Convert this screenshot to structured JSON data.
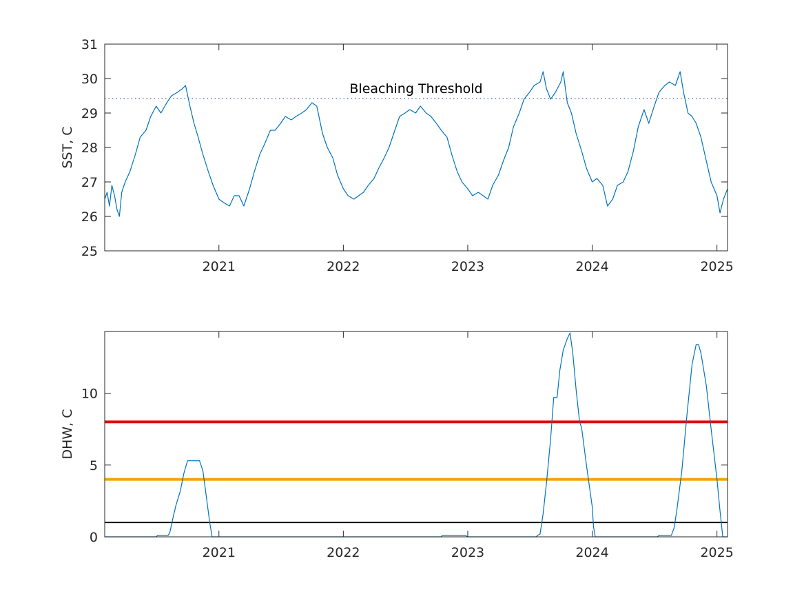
{
  "chart_data": [
    {
      "type": "line",
      "title": "",
      "xlabel": "",
      "ylabel": "SST, C",
      "xlim": [
        "2020-02-01",
        "2025-02-01"
      ],
      "ylim": [
        25,
        31
      ],
      "x_ticks": [
        "2021",
        "2022",
        "2023",
        "2024",
        "2025"
      ],
      "y_ticks": [
        "25",
        "26",
        "27",
        "28",
        "29",
        "30",
        "31"
      ],
      "grid": false,
      "series": [
        {
          "color": "#0072BD",
          "points": [
            [
              "2020-02-01",
              26.5
            ],
            [
              "2020-02-08",
              26.7
            ],
            [
              "2020-02-15",
              26.3
            ],
            [
              "2020-02-22",
              26.9
            ],
            [
              "2020-03-01",
              26.6
            ],
            [
              "2020-03-08",
              26.2
            ],
            [
              "2020-03-15",
              26.0
            ],
            [
              "2020-03-22",
              26.7
            ],
            [
              "2020-04-01",
              27.0
            ],
            [
              "2020-04-15",
              27.3
            ],
            [
              "2020-05-01",
              27.8
            ],
            [
              "2020-05-15",
              28.3
            ],
            [
              "2020-06-01",
              28.5
            ],
            [
              "2020-06-15",
              28.9
            ],
            [
              "2020-07-01",
              29.2
            ],
            [
              "2020-07-15",
              29.0
            ],
            [
              "2020-08-01",
              29.3
            ],
            [
              "2020-08-15",
              29.5
            ],
            [
              "2020-09-01",
              29.6
            ],
            [
              "2020-09-15",
              29.7
            ],
            [
              "2020-09-25",
              29.8
            ],
            [
              "2020-10-08",
              29.2
            ],
            [
              "2020-10-20",
              28.7
            ],
            [
              "2020-11-01",
              28.3
            ],
            [
              "2020-11-15",
              27.8
            ],
            [
              "2020-12-01",
              27.3
            ],
            [
              "2020-12-15",
              26.9
            ],
            [
              "2021-01-01",
              26.5
            ],
            [
              "2021-01-15",
              26.4
            ],
            [
              "2021-02-01",
              26.3
            ],
            [
              "2021-02-15",
              26.6
            ],
            [
              "2021-03-01",
              26.6
            ],
            [
              "2021-03-15",
              26.3
            ],
            [
              "2021-04-01",
              26.8
            ],
            [
              "2021-04-15",
              27.3
            ],
            [
              "2021-05-01",
              27.8
            ],
            [
              "2021-05-15",
              28.1
            ],
            [
              "2021-06-01",
              28.5
            ],
            [
              "2021-06-15",
              28.5
            ],
            [
              "2021-07-01",
              28.7
            ],
            [
              "2021-07-15",
              28.9
            ],
            [
              "2021-08-01",
              28.8
            ],
            [
              "2021-08-15",
              28.9
            ],
            [
              "2021-09-01",
              29.0
            ],
            [
              "2021-09-15",
              29.1
            ],
            [
              "2021-10-01",
              29.3
            ],
            [
              "2021-10-15",
              29.2
            ],
            [
              "2021-11-01",
              28.4
            ],
            [
              "2021-11-15",
              28.0
            ],
            [
              "2021-12-01",
              27.7
            ],
            [
              "2021-12-15",
              27.2
            ],
            [
              "2022-01-01",
              26.8
            ],
            [
              "2022-01-15",
              26.6
            ],
            [
              "2022-02-01",
              26.5
            ],
            [
              "2022-02-15",
              26.6
            ],
            [
              "2022-03-01",
              26.7
            ],
            [
              "2022-03-15",
              26.9
            ],
            [
              "2022-04-01",
              27.1
            ],
            [
              "2022-04-15",
              27.4
            ],
            [
              "2022-05-01",
              27.7
            ],
            [
              "2022-05-15",
              28.0
            ],
            [
              "2022-06-01",
              28.5
            ],
            [
              "2022-06-15",
              28.9
            ],
            [
              "2022-07-01",
              29.0
            ],
            [
              "2022-07-15",
              29.1
            ],
            [
              "2022-08-01",
              29.0
            ],
            [
              "2022-08-15",
              29.2
            ],
            [
              "2022-09-01",
              29.0
            ],
            [
              "2022-09-15",
              28.9
            ],
            [
              "2022-10-01",
              28.7
            ],
            [
              "2022-10-15",
              28.5
            ],
            [
              "2022-11-01",
              28.3
            ],
            [
              "2022-11-15",
              27.8
            ],
            [
              "2022-12-01",
              27.3
            ],
            [
              "2022-12-15",
              27.0
            ],
            [
              "2023-01-01",
              26.8
            ],
            [
              "2023-01-15",
              26.6
            ],
            [
              "2023-02-01",
              26.7
            ],
            [
              "2023-02-15",
              26.6
            ],
            [
              "2023-03-01",
              26.5
            ],
            [
              "2023-03-15",
              26.9
            ],
            [
              "2023-04-01",
              27.2
            ],
            [
              "2023-04-15",
              27.6
            ],
            [
              "2023-05-01",
              28.0
            ],
            [
              "2023-05-15",
              28.6
            ],
            [
              "2023-06-01",
              29.0
            ],
            [
              "2023-06-15",
              29.4
            ],
            [
              "2023-07-01",
              29.6
            ],
            [
              "2023-07-15",
              29.8
            ],
            [
              "2023-08-01",
              29.9
            ],
            [
              "2023-08-10",
              30.2
            ],
            [
              "2023-08-20",
              29.7
            ],
            [
              "2023-09-01",
              29.4
            ],
            [
              "2023-09-15",
              29.6
            ],
            [
              "2023-10-01",
              29.9
            ],
            [
              "2023-10-08",
              30.2
            ],
            [
              "2023-10-20",
              29.3
            ],
            [
              "2023-11-01",
              29.0
            ],
            [
              "2023-11-15",
              28.4
            ],
            [
              "2023-12-01",
              27.9
            ],
            [
              "2023-12-15",
              27.4
            ],
            [
              "2024-01-01",
              27.0
            ],
            [
              "2024-01-15",
              27.1
            ],
            [
              "2024-02-01",
              26.9
            ],
            [
              "2024-02-15",
              26.3
            ],
            [
              "2024-03-01",
              26.5
            ],
            [
              "2024-03-15",
              26.9
            ],
            [
              "2024-04-01",
              27.0
            ],
            [
              "2024-04-15",
              27.3
            ],
            [
              "2024-05-01",
              27.9
            ],
            [
              "2024-05-15",
              28.6
            ],
            [
              "2024-06-01",
              29.1
            ],
            [
              "2024-06-15",
              28.7
            ],
            [
              "2024-07-01",
              29.2
            ],
            [
              "2024-07-15",
              29.6
            ],
            [
              "2024-08-01",
              29.8
            ],
            [
              "2024-08-15",
              29.9
            ],
            [
              "2024-09-01",
              29.8
            ],
            [
              "2024-09-15",
              30.2
            ],
            [
              "2024-09-25",
              29.6
            ],
            [
              "2024-10-08",
              29.0
            ],
            [
              "2024-10-20",
              28.9
            ],
            [
              "2024-11-01",
              28.7
            ],
            [
              "2024-11-15",
              28.3
            ],
            [
              "2024-12-01",
              27.6
            ],
            [
              "2024-12-15",
              27.0
            ],
            [
              "2025-01-01",
              26.6
            ],
            [
              "2025-01-10",
              26.1
            ],
            [
              "2025-01-20",
              26.5
            ],
            [
              "2025-02-01",
              26.8
            ]
          ]
        }
      ],
      "reference_lines": [
        {
          "label": "Bleaching Threshold",
          "y": 29.42,
          "style": "dotted",
          "color": "#4a58b5"
        }
      ]
    },
    {
      "type": "line",
      "title": "",
      "xlabel": "",
      "ylabel": "DHW, C",
      "xlim": [
        "2020-02-01",
        "2025-02-01"
      ],
      "ylim": [
        0,
        14.3
      ],
      "x_ticks": [
        "2021",
        "2022",
        "2023",
        "2024",
        "2025"
      ],
      "y_ticks": [
        "0",
        "5",
        "10"
      ],
      "grid": false,
      "series": [
        {
          "color": "#0072BD",
          "points": [
            [
              "2020-02-01",
              0
            ],
            [
              "2020-07-01",
              0
            ],
            [
              "2020-07-05",
              0.1
            ],
            [
              "2020-08-05",
              0.1
            ],
            [
              "2020-08-10",
              0.3
            ],
            [
              "2020-08-18",
              1.2
            ],
            [
              "2020-08-28",
              2.2
            ],
            [
              "2020-09-10",
              3.2
            ],
            [
              "2020-09-20",
              4.4
            ],
            [
              "2020-10-01",
              5.3
            ],
            [
              "2020-11-05",
              5.3
            ],
            [
              "2020-11-15",
              4.6
            ],
            [
              "2020-11-25",
              2.8
            ],
            [
              "2020-12-05",
              1.0
            ],
            [
              "2020-12-12",
              0
            ],
            [
              "2022-10-15",
              0
            ],
            [
              "2022-10-18",
              0.1
            ],
            [
              "2022-12-25",
              0.1
            ],
            [
              "2023-01-01",
              0
            ],
            [
              "2023-07-20",
              0
            ],
            [
              "2023-07-25",
              0.1
            ],
            [
              "2023-08-01",
              0.2
            ],
            [
              "2023-08-10",
              1.6
            ],
            [
              "2023-08-20",
              3.8
            ],
            [
              "2023-09-01",
              6.8
            ],
            [
              "2023-09-10",
              9.7
            ],
            [
              "2023-09-20",
              9.7
            ],
            [
              "2023-09-28",
              11.6
            ],
            [
              "2023-10-08",
              13.0
            ],
            [
              "2023-10-20",
              13.8
            ],
            [
              "2023-10-28",
              14.2
            ],
            [
              "2023-11-05",
              12.8
            ],
            [
              "2023-11-15",
              10.2
            ],
            [
              "2023-11-25",
              8.0
            ],
            [
              "2023-12-01",
              7.6
            ],
            [
              "2023-12-15",
              5.0
            ],
            [
              "2024-01-01",
              2.1
            ],
            [
              "2024-01-05",
              0.7
            ],
            [
              "2024-01-10",
              0
            ],
            [
              "2024-07-10",
              0
            ],
            [
              "2024-07-15",
              0.1
            ],
            [
              "2024-08-20",
              0.1
            ],
            [
              "2024-08-28",
              0.6
            ],
            [
              "2024-09-05",
              1.8
            ],
            [
              "2024-09-20",
              4.6
            ],
            [
              "2024-10-05",
              8.5
            ],
            [
              "2024-10-20",
              12.0
            ],
            [
              "2024-11-01",
              13.4
            ],
            [
              "2024-11-08",
              13.4
            ],
            [
              "2024-11-15",
              12.8
            ],
            [
              "2024-12-01",
              10.5
            ],
            [
              "2024-12-15",
              7.5
            ],
            [
              "2025-01-01",
              4.0
            ],
            [
              "2025-01-10",
              1.8
            ],
            [
              "2025-01-18",
              0
            ],
            [
              "2025-02-01",
              0
            ]
          ]
        }
      ],
      "reference_lines": [
        {
          "y": 8,
          "color": "#e60000",
          "style": "solid"
        },
        {
          "y": 4,
          "color": "#f5a200",
          "style": "solid"
        },
        {
          "y": 1,
          "color": "#000000",
          "style": "solid"
        }
      ]
    }
  ]
}
